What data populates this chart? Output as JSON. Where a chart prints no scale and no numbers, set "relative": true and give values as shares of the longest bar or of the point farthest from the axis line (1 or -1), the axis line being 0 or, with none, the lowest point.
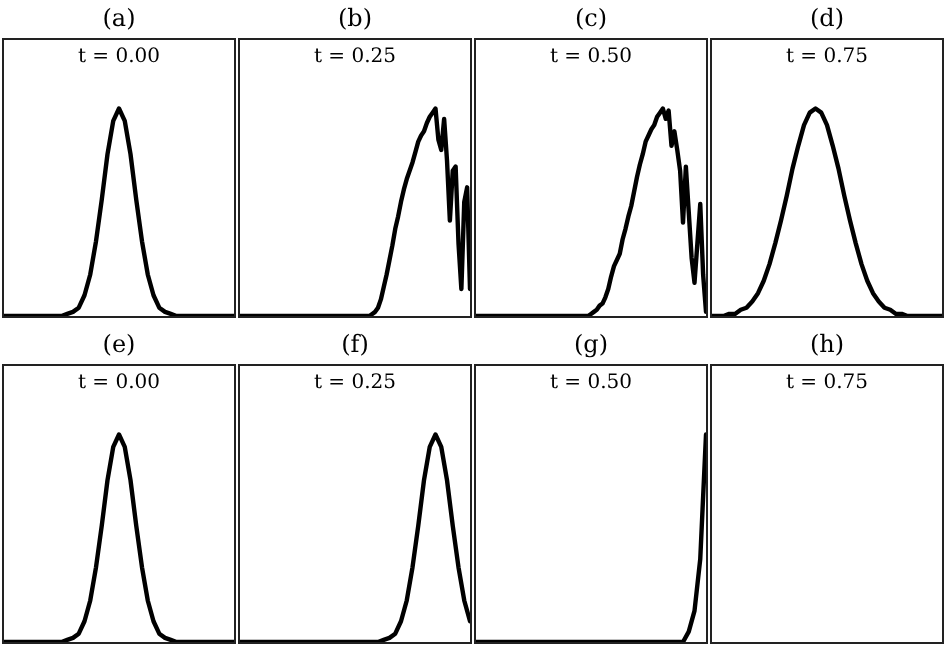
{
  "chart_data": [
    {
      "type": "line",
      "title": "(a)",
      "annotations": [
        "t = 0.00"
      ],
      "relative": true,
      "color": "#000000",
      "categories": [
        null,
        null,
        null,
        null,
        null,
        null,
        null,
        null,
        null,
        null,
        null,
        null,
        null,
        null,
        null,
        null,
        null,
        null,
        null,
        null,
        null,
        null,
        null,
        null,
        null,
        null,
        null,
        null,
        null,
        null,
        null,
        null,
        null,
        null,
        null,
        null,
        null,
        null,
        null,
        null,
        null
      ],
      "values": [
        0,
        0,
        0,
        0,
        0,
        0,
        0,
        0,
        0,
        0,
        0,
        0.01,
        0.02,
        0.04,
        0.1,
        0.2,
        0.36,
        0.56,
        0.78,
        0.94,
        1,
        0.94,
        0.78,
        0.56,
        0.36,
        0.2,
        0.1,
        0.04,
        0.02,
        0.01,
        0,
        0,
        0,
        0,
        0,
        0,
        0,
        0,
        0,
        0,
        0
      ]
    },
    {
      "type": "line",
      "title": "(b)",
      "annotations": [
        "t = 0.25"
      ],
      "relative": true,
      "color": "#000000",
      "categories": [
        null,
        null,
        null,
        null,
        null,
        null,
        null,
        null,
        null,
        null,
        null,
        null,
        null,
        null,
        null,
        null,
        null,
        null,
        null,
        null,
        null,
        null,
        null,
        null,
        null,
        null,
        null,
        null,
        null,
        null,
        null,
        null,
        null,
        null,
        null,
        null,
        null,
        null,
        null,
        null,
        null,
        null,
        null,
        null,
        null,
        null,
        null,
        null,
        null,
        null,
        null,
        null,
        null,
        null,
        null,
        null,
        null,
        null,
        null,
        null,
        null,
        null,
        null,
        null,
        null,
        null,
        null,
        null,
        null,
        null,
        null,
        null,
        null,
        null,
        null,
        null,
        null,
        null,
        null,
        null,
        null
      ],
      "values": [
        0,
        0,
        0,
        0,
        0,
        0,
        0,
        0,
        0,
        0,
        0,
        0,
        0,
        0,
        0,
        0,
        0,
        0,
        0,
        0,
        0,
        0,
        0,
        0,
        0,
        0,
        0,
        0,
        0,
        0,
        0,
        0,
        0,
        0,
        0,
        0,
        0,
        0,
        0,
        0,
        0,
        0,
        0,
        0,
        0,
        0,
        0.01,
        0.02,
        0.04,
        0.08,
        0.14,
        0.2,
        0.27,
        0.34,
        0.42,
        0.48,
        0.55,
        0.61,
        0.66,
        0.7,
        0.74,
        0.79,
        0.84,
        0.87,
        0.89,
        0.93,
        0.96,
        0.98,
        1,
        0.85,
        0.8,
        0.95,
        0.75,
        0.46,
        0.7,
        0.72,
        0.35,
        0.13,
        0.55,
        0.62,
        0.13
      ]
    },
    {
      "type": "line",
      "title": "(c)",
      "annotations": [
        "t = 0.50"
      ],
      "relative": true,
      "color": "#000000",
      "categories": [
        null,
        null,
        null,
        null,
        null,
        null,
        null,
        null,
        null,
        null,
        null,
        null,
        null,
        null,
        null,
        null,
        null,
        null,
        null,
        null,
        null,
        null,
        null,
        null,
        null,
        null,
        null,
        null,
        null,
        null,
        null,
        null,
        null,
        null,
        null,
        null,
        null,
        null,
        null,
        null,
        null,
        null,
        null,
        null,
        null,
        null,
        null,
        null,
        null,
        null,
        null,
        null,
        null,
        null,
        null,
        null,
        null,
        null,
        null,
        null,
        null,
        null,
        null,
        null,
        null,
        null,
        null,
        null,
        null,
        null,
        null,
        null,
        null,
        null,
        null,
        null,
        null,
        null,
        null,
        null,
        null
      ],
      "values": [
        0,
        0,
        0,
        0,
        0,
        0,
        0,
        0,
        0,
        0,
        0,
        0,
        0,
        0,
        0,
        0,
        0,
        0,
        0,
        0,
        0,
        0,
        0,
        0,
        0,
        0,
        0,
        0,
        0,
        0,
        0,
        0,
        0,
        0,
        0,
        0,
        0,
        0,
        0,
        0,
        0.01,
        0.02,
        0.03,
        0.05,
        0.06,
        0.09,
        0.13,
        0.19,
        0.24,
        0.27,
        0.3,
        0.37,
        0.42,
        0.48,
        0.53,
        0.6,
        0.67,
        0.73,
        0.78,
        0.84,
        0.87,
        0.9,
        0.92,
        0.96,
        0.98,
        1,
        0.95,
        0.99,
        0.82,
        0.89,
        0.8,
        0.7,
        0.45,
        0.72,
        0.5,
        0.28,
        0.16,
        0.35,
        0.54,
        0.2,
        0.02
      ]
    },
    {
      "type": "line",
      "title": "(d)",
      "annotations": [
        "t = 0.75"
      ],
      "relative": true,
      "color": "#000000",
      "categories": [
        null,
        null,
        null,
        null,
        null,
        null,
        null,
        null,
        null,
        null,
        null,
        null,
        null,
        null,
        null,
        null,
        null,
        null,
        null,
        null,
        null,
        null,
        null,
        null,
        null,
        null,
        null,
        null,
        null,
        null,
        null,
        null,
        null,
        null,
        null,
        null,
        null,
        null,
        null,
        null,
        null
      ],
      "values": [
        0,
        0,
        0,
        0.01,
        0.01,
        0.03,
        0.04,
        0.07,
        0.11,
        0.17,
        0.25,
        0.35,
        0.46,
        0.58,
        0.71,
        0.82,
        0.92,
        0.98,
        1,
        0.98,
        0.92,
        0.82,
        0.71,
        0.58,
        0.46,
        0.35,
        0.25,
        0.17,
        0.11,
        0.07,
        0.04,
        0.03,
        0.01,
        0.01,
        0,
        0,
        0,
        0,
        0,
        0,
        0
      ]
    },
    {
      "type": "line",
      "title": "(e)",
      "annotations": [
        "t = 0.00"
      ],
      "relative": true,
      "color": "#000000",
      "categories": [
        null,
        null,
        null,
        null,
        null,
        null,
        null,
        null,
        null,
        null,
        null,
        null,
        null,
        null,
        null,
        null,
        null,
        null,
        null,
        null,
        null,
        null,
        null,
        null,
        null,
        null,
        null,
        null,
        null,
        null,
        null,
        null,
        null,
        null,
        null,
        null,
        null,
        null,
        null,
        null,
        null
      ],
      "values": [
        0,
        0,
        0,
        0,
        0,
        0,
        0,
        0,
        0,
        0,
        0,
        0.01,
        0.02,
        0.04,
        0.1,
        0.2,
        0.36,
        0.56,
        0.78,
        0.94,
        1,
        0.94,
        0.78,
        0.56,
        0.36,
        0.2,
        0.1,
        0.04,
        0.02,
        0.01,
        0,
        0,
        0,
        0,
        0,
        0,
        0,
        0,
        0,
        0,
        0
      ]
    },
    {
      "type": "line",
      "title": "(f)",
      "annotations": [
        "t = 0.25"
      ],
      "relative": true,
      "color": "#000000",
      "categories": [
        null,
        null,
        null,
        null,
        null,
        null,
        null,
        null,
        null,
        null,
        null,
        null,
        null,
        null,
        null,
        null,
        null,
        null,
        null,
        null,
        null,
        null,
        null,
        null,
        null,
        null,
        null,
        null,
        null,
        null,
        null,
        null,
        null,
        null,
        null,
        null,
        null,
        null,
        null,
        null,
        null
      ],
      "values": [
        0,
        0,
        0,
        0,
        0,
        0,
        0,
        0,
        0,
        0,
        0,
        0,
        0,
        0,
        0,
        0,
        0,
        0,
        0,
        0,
        0,
        0,
        0,
        0,
        0,
        0.01,
        0.02,
        0.04,
        0.1,
        0.2,
        0.36,
        0.56,
        0.78,
        0.94,
        1,
        0.94,
        0.78,
        0.56,
        0.36,
        0.2,
        0.1
      ]
    },
    {
      "type": "line",
      "title": "(g)",
      "annotations": [
        "t = 0.50"
      ],
      "relative": true,
      "color": "#000000",
      "categories": [
        null,
        null,
        null,
        null,
        null,
        null,
        null,
        null,
        null,
        null,
        null,
        null,
        null,
        null,
        null,
        null,
        null,
        null,
        null,
        null,
        null,
        null,
        null,
        null,
        null,
        null,
        null,
        null,
        null,
        null,
        null,
        null,
        null,
        null,
        null,
        null,
        null,
        null,
        null,
        null,
        null
      ],
      "values": [
        0,
        0,
        0,
        0,
        0,
        0,
        0,
        0,
        0,
        0,
        0,
        0,
        0,
        0,
        0,
        0,
        0,
        0,
        0,
        0,
        0,
        0,
        0,
        0,
        0,
        0,
        0,
        0,
        0,
        0,
        0,
        0,
        0,
        0,
        0,
        0,
        0,
        0.05,
        0.15,
        0.4,
        1
      ]
    },
    {
      "type": "other",
      "title": "(h)",
      "annotations": [
        "t = 0.75"
      ]
    }
  ]
}
